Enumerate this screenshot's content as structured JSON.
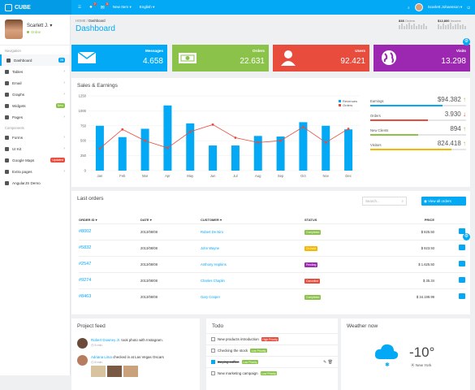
{
  "topbar": {
    "brand": "CUBE",
    "notif1": "7",
    "notif2": "3",
    "new_item": "New Item",
    "language": "English",
    "user": "Scarlett Johansson"
  },
  "sidebar": {
    "user_name": "Scarlett J.",
    "status": "Online",
    "nav_header": "Navigation",
    "items": [
      {
        "label": "Dashboard",
        "badge": "28",
        "badge_color": "#03a9f4",
        "active": true
      },
      {
        "label": "Tables",
        "caret": "›"
      },
      {
        "label": "Email",
        "caret": "›"
      },
      {
        "label": "Graphs",
        "caret": "›"
      },
      {
        "label": "Widgets",
        "badge": "New",
        "badge_color": "#8bc34a"
      },
      {
        "label": "Pages",
        "caret": "›"
      }
    ],
    "components_header": "Components",
    "items2": [
      {
        "label": "Forms",
        "caret": "›"
      },
      {
        "label": "UI Kit",
        "caret": "›"
      },
      {
        "label": "Google Maps",
        "badge": "Updated",
        "badge_color": "#e84c3d"
      },
      {
        "label": "Extra pages",
        "caret": "›"
      },
      {
        "label": "AngularJS Demo"
      }
    ]
  },
  "header": {
    "crumb_home": "HOME",
    "crumb_sep": "/",
    "crumb_current": "Dashboard",
    "title": "Dashboard",
    "orders_count": "838",
    "orders_label": "Orders",
    "income": "$12,800",
    "income_label": "Income"
  },
  "stats": [
    {
      "label": "Messages",
      "value": "4.658",
      "color": "#03a9f4",
      "icon": "envelope-icon"
    },
    {
      "label": "Orders",
      "value": "22.631",
      "color": "#8bc34a",
      "icon": "money-icon"
    },
    {
      "label": "Users",
      "value": "92.421",
      "color": "#e84c3d",
      "icon": "user-icon"
    },
    {
      "label": "Visits",
      "value": "13.298",
      "color": "#9c27b0",
      "icon": "globe-icon"
    }
  ],
  "sales": {
    "title": "Sales & Earnings",
    "legend_revenues": "Revenues",
    "legend_orders": "Orders"
  },
  "chart_data": {
    "type": "bar",
    "title": "Sales & Earnings",
    "categories": [
      "Jan",
      "Feb",
      "Mar",
      "Apr",
      "May",
      "Jun",
      "Jul",
      "Aug",
      "Sep",
      "Oct",
      "Nov",
      "Dec"
    ],
    "yticks": [
      "0",
      "250",
      "500",
      "750",
      "1000",
      "1250"
    ],
    "ylim": [
      0,
      1250
    ],
    "series": [
      {
        "name": "Revenues",
        "kind": "bar",
        "color": "#03a9f4",
        "values": [
          750,
          560,
          700,
          1090,
          790,
          420,
          420,
          580,
          570,
          810,
          750,
          690
        ]
      },
      {
        "name": "Orders",
        "kind": "line",
        "color": "#e84c3d",
        "values": [
          370,
          690,
          500,
          380,
          650,
          770,
          550,
          470,
          500,
          730,
          470,
          700
        ]
      }
    ]
  },
  "kpis": [
    {
      "label": "Earnings",
      "value": "$94.382",
      "arrow": "↑",
      "color": "#03a9f4",
      "fill": 0.75
    },
    {
      "label": "Orders",
      "value": "3.930",
      "arrow": "↓",
      "color": "#e84c3d",
      "fill": 0.6
    },
    {
      "label": "New Clients",
      "value": "894",
      "arrow": "↑",
      "color": "#8bc34a",
      "fill": 0.5
    },
    {
      "label": "Visitors",
      "value": "824.418",
      "arrow": "↑",
      "color": "#f5b800",
      "fill": 0.85
    }
  ],
  "orders": {
    "title": "Last orders",
    "search_placeholder": "Search...",
    "view_all": "View all orders",
    "headers": [
      "ORDER ID",
      "DATE",
      "CUSTOMER",
      "STATUS",
      "PRICE"
    ],
    "rows": [
      {
        "id": "#8002",
        "date": "2013/08/08",
        "customer": "Robert De Niro",
        "status": "Completed",
        "status_color": "#8bc34a",
        "price": "$ 825.50"
      },
      {
        "id": "#5832",
        "date": "2013/08/08",
        "customer": "John Wayne",
        "status": "On hold",
        "status_color": "#f5b800",
        "price": "$ 923.93"
      },
      {
        "id": "#2547",
        "date": "2013/08/08",
        "customer": "Anthony Hopkins",
        "status": "Pending",
        "status_color": "#9c27b0",
        "price": "$ 1.625.50"
      },
      {
        "id": "#9274",
        "date": "2013/08/08",
        "customer": "Charles Chaplin",
        "status": "Cancelled",
        "status_color": "#e84c3d",
        "price": "$ 35.34"
      },
      {
        "id": "#8463",
        "date": "2013/08/08",
        "customer": "Gary Cooper",
        "status": "Completed",
        "status_color": "#8bc34a",
        "price": "$ 34.199.99"
      }
    ]
  },
  "feed": {
    "title": "Project feed",
    "items": [
      {
        "name": "Robert Downey Jr.",
        "text": "took photo with Instagram.",
        "time": "5 min."
      },
      {
        "name": "Adriana Lima",
        "text": "checked in at Las Vegas Oscars",
        "time": "5 min."
      }
    ]
  },
  "todo": {
    "title": "Todo",
    "items": [
      {
        "text": "New products introduction",
        "tag": "High Priority",
        "tag_color": "#e84c3d",
        "checked": false
      },
      {
        "text": "Checking the stock",
        "tag": "Low Priority",
        "tag_color": "#8bc34a",
        "checked": false
      },
      {
        "text": "Buying coffee",
        "tag": "Low Priority",
        "tag_color": "#8bc34a",
        "checked": true
      },
      {
        "text": "New marketing campaign",
        "tag": "Low Priority",
        "tag_color": "#8bc34a",
        "checked": false
      }
    ]
  },
  "weather": {
    "title": "Weather now",
    "temp": "-10°",
    "location": "New York"
  }
}
